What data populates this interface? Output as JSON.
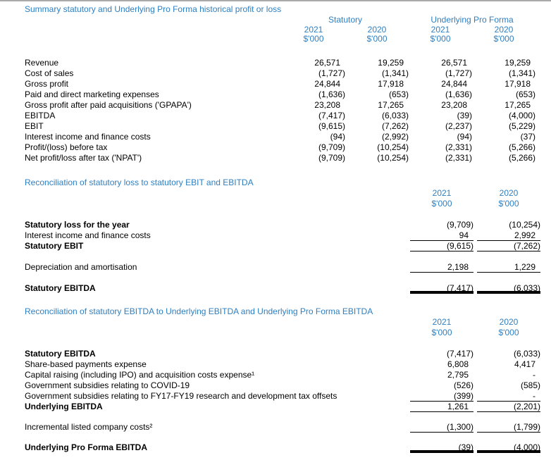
{
  "colors": {
    "accent_blue": "#2e7fc1",
    "text": "#000000",
    "top_rule_gray": "#a9a9a9",
    "total_rule_black": "#000000"
  },
  "section_profit_loss": {
    "title": "Summary statutory and Underlying Pro Forma historical profit or loss",
    "group_headers": {
      "statutory": "Statutory",
      "pro_forma": "Underlying Pro Forma"
    },
    "years": [
      "2021",
      "2020",
      "2021",
      "2020"
    ],
    "unit": "$'000",
    "rows": [
      {
        "label": "Revenue",
        "v": [
          "26,571",
          "19,259",
          "26,571",
          "19,259"
        ]
      },
      {
        "label": "Cost of sales",
        "v": [
          "(1,727)",
          "(1,341)",
          "(1,727)",
          "(1,341)"
        ]
      },
      {
        "label": "Gross profit",
        "v": [
          "24,844",
          "17,918",
          "24,844",
          "17,918"
        ]
      },
      {
        "label": "Paid and direct marketing expenses",
        "v": [
          "(1,636)",
          "(653)",
          "(1,636)",
          "(653)"
        ]
      },
      {
        "label": "Gross profit after paid acquisitions ('GPAPA')",
        "v": [
          "23,208",
          "17,265",
          "23,208",
          "17,265"
        ]
      },
      {
        "label": "EBITDA",
        "v": [
          "(7,417)",
          "(6,033)",
          "(39)",
          "(4,000)"
        ]
      },
      {
        "label": "EBIT",
        "v": [
          "(9,615)",
          "(7,262)",
          "(2,237)",
          "(5,229)"
        ]
      },
      {
        "label": "Interest income and finance costs",
        "v": [
          "(94)",
          "(2,992)",
          "(94)",
          "(37)"
        ]
      },
      {
        "label": "Profit/(loss) before tax",
        "v": [
          "(9,709)",
          "(10,254)",
          "(2,331)",
          "(5,266)"
        ]
      },
      {
        "label": "Net profit/loss after tax ('NPAT')",
        "v": [
          "(9,709)",
          "(10,254)",
          "(2,331)",
          "(5,266)"
        ]
      }
    ]
  },
  "section_ebit_recon": {
    "title": "Reconciliation of statutory loss to statutory EBIT and EBITDA",
    "years": [
      "2021",
      "2020"
    ],
    "unit": "$'000",
    "rows": [
      {
        "label": "Statutory loss for the year",
        "v": [
          "(9,709)",
          "(10,254)"
        ]
      },
      {
        "label": "Interest income and finance costs",
        "v": [
          "94",
          "2,992"
        ]
      },
      {
        "label": "Statutory EBIT",
        "v": [
          "(9,615)",
          "(7,262)"
        ]
      },
      {
        "label": "Depreciation and amortisation",
        "v": [
          "2,198",
          "1,229"
        ]
      },
      {
        "label": "Statutory EBITDA",
        "v": [
          "(7,417)",
          "(6,033)"
        ]
      }
    ]
  },
  "section_ebitda_recon": {
    "title": "Reconciliation of statutory EBITDA to Underlying EBITDA and Underlying Pro Forma EBITDA",
    "years": [
      "2021",
      "2020"
    ],
    "unit": "$'000",
    "rows": [
      {
        "label": "Statutory EBITDA",
        "v": [
          "(7,417)",
          "(6,033)"
        ]
      },
      {
        "label": "Share-based payments expense",
        "v": [
          "6,808",
          "4,417"
        ]
      },
      {
        "label": "Capital raising (including IPO) and acquisition costs expense¹",
        "v": [
          "2,795",
          "-"
        ]
      },
      {
        "label": "Government subsidies relating to COVID-19",
        "v": [
          "(526)",
          "(585)"
        ]
      },
      {
        "label": "Government subsidies relating to FY17-FY19 research and development tax offsets",
        "v": [
          "(399)",
          "-"
        ]
      },
      {
        "label": "Underlying EBITDA",
        "v": [
          "1,261",
          "(2,201)"
        ]
      },
      {
        "label": "Incremental listed company costs²",
        "v": [
          "(1,300)",
          "(1,799)"
        ]
      },
      {
        "label": "Underlying Pro Forma EBITDA",
        "v": [
          "(39)",
          "(4,000)"
        ]
      }
    ]
  }
}
